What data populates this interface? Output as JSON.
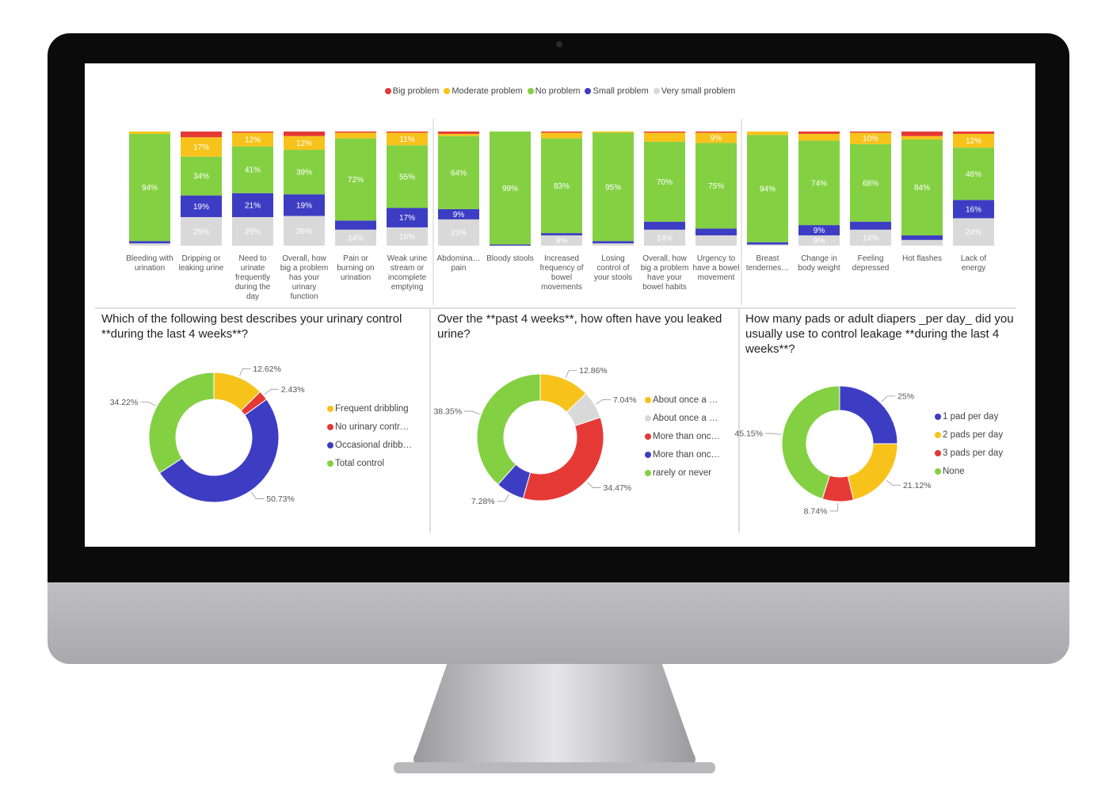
{
  "chart_data": [
    {
      "type": "bar",
      "stacked": true,
      "categories": [
        "Bleeding with urination",
        "Dripping or leaking urine",
        "Need to urinate frequently during the day",
        "Overall, how big a problem has your urinary function",
        "Pain or burning on urination",
        "Weak urine stream or incomplete emptying",
        "Abdomina… pain",
        "Bloody stools",
        "Increased frequency of bowel movements",
        "Losing control of your stools",
        "Overall, how big a problem have your bowel habits",
        "Urgency to have a bowel movement",
        "Breast tendernes…",
        "Change in body weight",
        "Feeling depressed",
        "Hot flashes",
        "Lack of energy"
      ],
      "series": [
        {
          "name": "Big problem",
          "color": "#e53935",
          "values": [
            0,
            5,
            1,
            4,
            1,
            1,
            2,
            0,
            1,
            0,
            1,
            1,
            0,
            2,
            1,
            4,
            2
          ]
        },
        {
          "name": "Moderate problem",
          "color": "#f7c31b",
          "values": [
            2,
            17,
            12,
            12,
            5,
            11,
            2,
            0,
            5,
            1,
            8,
            9,
            3,
            6,
            10,
            3,
            12
          ],
          "value_labels": [
            null,
            "17%",
            "12%",
            "12%",
            null,
            "11%",
            null,
            null,
            null,
            null,
            null,
            "9%",
            null,
            null,
            "10%",
            null,
            "12%"
          ]
        },
        {
          "name": "No problem",
          "color": "#84d043",
          "values": [
            94,
            34,
            41,
            39,
            72,
            55,
            64,
            99,
            83,
            95,
            70,
            75,
            94,
            74,
            68,
            84,
            46
          ],
          "value_labels": [
            "94%",
            "34%",
            "41%",
            "39%",
            "72%",
            "55%",
            "64%",
            "99%",
            "83%",
            "95%",
            "70%",
            "75%",
            "94%",
            "74%",
            "68%",
            "84%",
            "46%"
          ]
        },
        {
          "name": "Small problem",
          "color": "#3d3dc4",
          "values": [
            2,
            19,
            21,
            19,
            8,
            17,
            9,
            1,
            2,
            2,
            7,
            6,
            2,
            9,
            7,
            4,
            16
          ],
          "value_labels": [
            null,
            "19%",
            "21%",
            "19%",
            null,
            "17%",
            "9%",
            null,
            null,
            null,
            null,
            null,
            null,
            "9%",
            null,
            null,
            "16%"
          ]
        },
        {
          "name": "Very small problem",
          "color": "#d9d9d9",
          "values": [
            2,
            25,
            25,
            26,
            14,
            16,
            23,
            0,
            9,
            2,
            14,
            9,
            1,
            9,
            14,
            5,
            24
          ],
          "value_labels": [
            null,
            "25%",
            "25%",
            "26%",
            "14%",
            "16%",
            "23%",
            null,
            "9%",
            null,
            "14%",
            null,
            null,
            "9%",
            "14%",
            null,
            "24%"
          ]
        }
      ]
    },
    {
      "type": "donut",
      "title": "Which of the following best describes your urinary control **during the last 4 weeks**?",
      "categories": [
        "Frequent dribbling",
        "No urinary contr…",
        "Occasional dribb…",
        "Total control"
      ],
      "values": [
        12.62,
        2.43,
        50.73,
        34.22
      ],
      "value_labels": [
        "12.62%",
        "2.43%",
        "50.73%",
        "34.22%"
      ],
      "colors": [
        "#f7c31b",
        "#e53935",
        "#3d3dc4",
        "#84d043"
      ]
    },
    {
      "type": "donut",
      "title": "Over the **past 4 weeks**, how often have you leaked urine?",
      "categories": [
        "About once a …",
        "About once a …",
        "More than onc…",
        "More than onc…",
        "rarely or never"
      ],
      "values": [
        12.86,
        7.04,
        34.47,
        7.28,
        38.35
      ],
      "value_labels": [
        "12.86%",
        "7.04%",
        "34.47%",
        "7.28%",
        "38.35%"
      ],
      "colors": [
        "#f7c31b",
        "#d9d9d9",
        "#e53935",
        "#3d3dc4",
        "#84d043"
      ]
    },
    {
      "type": "donut",
      "title": "How many pads or adult diapers _per day_ did you usually use to control leakage **during the last 4 weeks**?",
      "categories": [
        "1 pad per day",
        "2 pads per day",
        "3 pads per day",
        "None"
      ],
      "values": [
        25,
        21.12,
        8.74,
        45.15
      ],
      "value_labels": [
        "25%",
        "21.12%",
        "8.74%",
        "45.15%"
      ],
      "colors": [
        "#3d3dc4",
        "#f7c31b",
        "#e53935",
        "#84d043"
      ]
    }
  ]
}
